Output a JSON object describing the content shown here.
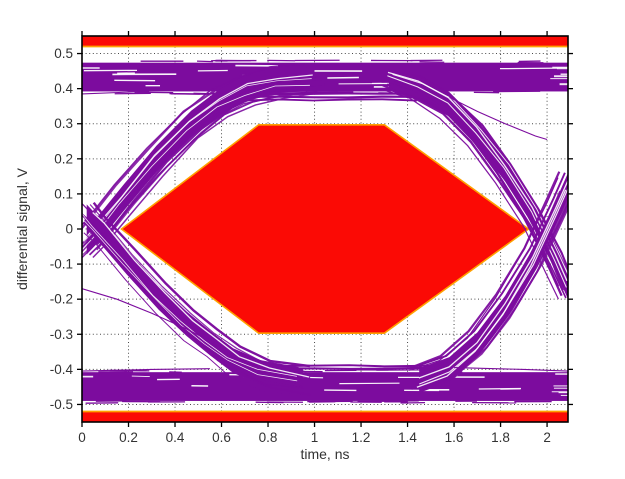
{
  "chart_data": {
    "type": "line",
    "subtype": "eye-diagram-with-mask",
    "title": "",
    "xlabel": "time, ns",
    "ylabel": "differential signal, V",
    "xlim": [
      0,
      2.09
    ],
    "ylim": [
      -0.55,
      0.55
    ],
    "grid": true,
    "legend": "none",
    "xticks": [
      0,
      0.2,
      0.4,
      0.6,
      0.8,
      1,
      1.2,
      1.4,
      1.6,
      1.8,
      2
    ],
    "xtick_labels": [
      "0",
      "0.2",
      "0.4",
      "0.6",
      "0.8",
      "1",
      "1.2",
      "1.4",
      "1.6",
      "1.8",
      "2"
    ],
    "yticks": [
      0.5,
      0.4,
      0.3,
      0.2,
      0.1,
      0,
      -0.1,
      -0.2,
      -0.3,
      -0.4,
      -0.5
    ],
    "ytick_labels": [
      "0.5",
      "0.4",
      "0.3",
      "0.2",
      "0.1",
      "0",
      "-0.1",
      "-0.2",
      "-0.3",
      "-0.4",
      "-0.5"
    ],
    "colors": {
      "trace": "#7C0C9E",
      "trace_gap": "#FFFFFF",
      "mask_fill": "#FB0A05",
      "mask_edge": "#FFA000",
      "grid": "#4A4A4A",
      "axis": "#000000",
      "text": "#333333",
      "background": "#FFFFFF"
    },
    "mask": {
      "inner_hexagon_ns_V": [
        [
          0.17,
          0
        ],
        [
          0.76,
          0.297
        ],
        [
          1.3,
          0.297
        ],
        [
          1.92,
          0
        ],
        [
          1.3,
          -0.297
        ],
        [
          0.76,
          -0.297
        ]
      ],
      "top_bar_V": [
        0.52,
        0.55
      ],
      "bottom_bar_V": [
        -0.55,
        -0.52
      ]
    },
    "signal_levels_V": {
      "high_band": [
        0.392,
        0.474
      ],
      "low_band": [
        -0.49,
        -0.408
      ],
      "high_inner_streaks": {
        "x0": 0.55,
        "x1": 1.44,
        "ys": [
          0.368,
          0.376,
          0.385
        ]
      },
      "low_inner_streaks": {
        "x0": 0.7,
        "x1": 1.6,
        "ys": [
          -0.39,
          -0.397
        ]
      }
    },
    "crossing_times_ns": [
      0.07,
      2.0
    ],
    "transition_bundles": [
      {
        "name": "rise-left",
        "thickness": 0.075,
        "count": 16,
        "xspread": 0.1,
        "centerline": [
          [
            0.02,
            -0.035
          ],
          [
            0.07,
            0.0
          ],
          [
            0.18,
            0.09
          ],
          [
            0.32,
            0.2
          ],
          [
            0.47,
            0.3
          ],
          [
            0.6,
            0.365
          ],
          [
            0.72,
            0.405
          ],
          [
            0.85,
            0.425
          ],
          [
            1.0,
            0.432
          ]
        ]
      },
      {
        "name": "fall-left",
        "thickness": 0.07,
        "count": 14,
        "xspread": 0.09,
        "centerline": [
          [
            0.02,
            0.035
          ],
          [
            0.07,
            0.0
          ],
          [
            0.2,
            -0.1
          ],
          [
            0.33,
            -0.195
          ],
          [
            0.45,
            -0.27
          ],
          [
            0.55,
            -0.325
          ],
          [
            0.65,
            -0.375
          ],
          [
            0.78,
            -0.412
          ],
          [
            0.95,
            -0.432
          ]
        ]
      },
      {
        "name": "fall-right",
        "thickness": 0.07,
        "count": 14,
        "xspread": 0.1,
        "centerline": [
          [
            1.32,
            0.432
          ],
          [
            1.45,
            0.405
          ],
          [
            1.58,
            0.355
          ],
          [
            1.7,
            0.275
          ],
          [
            1.82,
            0.17
          ],
          [
            1.94,
            0.045
          ],
          [
            2.04,
            -0.09
          ],
          [
            2.09,
            -0.165
          ]
        ]
      },
      {
        "name": "rise-right",
        "thickness": 0.07,
        "count": 14,
        "xspread": 0.1,
        "centerline": [
          [
            1.45,
            -0.432
          ],
          [
            1.58,
            -0.4
          ],
          [
            1.7,
            -0.33
          ],
          [
            1.82,
            -0.225
          ],
          [
            1.94,
            -0.09
          ],
          [
            2.04,
            0.05
          ],
          [
            2.09,
            0.125
          ]
        ]
      }
    ],
    "stray_traces": [
      {
        "name": "stray-left-low",
        "points": [
          [
            0,
            -0.17
          ],
          [
            0.15,
            -0.2
          ],
          [
            0.3,
            -0.24
          ],
          [
            0.45,
            -0.285
          ],
          [
            0.58,
            -0.33
          ],
          [
            0.68,
            -0.375
          ]
        ]
      },
      {
        "name": "stray-right-high",
        "points": [
          [
            1.58,
            0.375
          ],
          [
            1.7,
            0.335
          ],
          [
            1.82,
            0.3
          ],
          [
            1.95,
            0.265
          ],
          [
            2.0,
            0.255
          ]
        ]
      },
      {
        "name": "stray-left-high",
        "points": [
          [
            0,
            0.385
          ],
          [
            0.2,
            0.39
          ],
          [
            0.45,
            0.398
          ],
          [
            0.6,
            0.405
          ]
        ]
      },
      {
        "name": "stray-left-bottom",
        "points": [
          [
            0,
            -0.405
          ],
          [
            0.3,
            -0.4
          ],
          [
            0.55,
            -0.398
          ]
        ]
      },
      {
        "name": "stray-right-bottom",
        "points": [
          [
            1.6,
            -0.395
          ],
          [
            1.9,
            -0.4
          ],
          [
            2.09,
            -0.405
          ]
        ]
      }
    ]
  }
}
